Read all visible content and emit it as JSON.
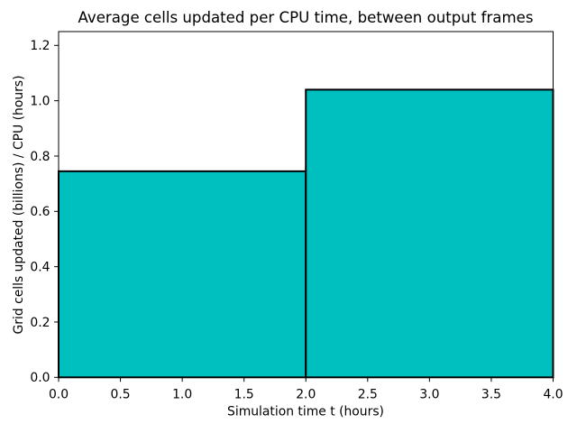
{
  "chart_data": {
    "type": "bar",
    "subtype": "histogram-step",
    "title": "Average cells updated per CPU time, between output frames",
    "xlabel": "Simulation time t (hours)",
    "ylabel": "Grid cells updated (billions) / CPU (hours)",
    "bin_edges": [
      0.0,
      2.0,
      4.0
    ],
    "values": [
      0.745,
      1.04
    ],
    "xlim": [
      0.0,
      4.0
    ],
    "ylim": [
      0.0,
      1.25
    ],
    "xticks": [
      0.0,
      0.5,
      1.0,
      1.5,
      2.0,
      2.5,
      3.0,
      3.5,
      4.0
    ],
    "yticks": [
      0.0,
      0.2,
      0.4,
      0.6,
      0.8,
      1.0,
      1.2
    ],
    "tick_decimals": 1,
    "grid": false,
    "legend_position": "none",
    "bar_fill_color": "#00bfbf",
    "bar_edge_color": "#000000",
    "axes_color": "#000000",
    "background_color": "#ffffff"
  }
}
